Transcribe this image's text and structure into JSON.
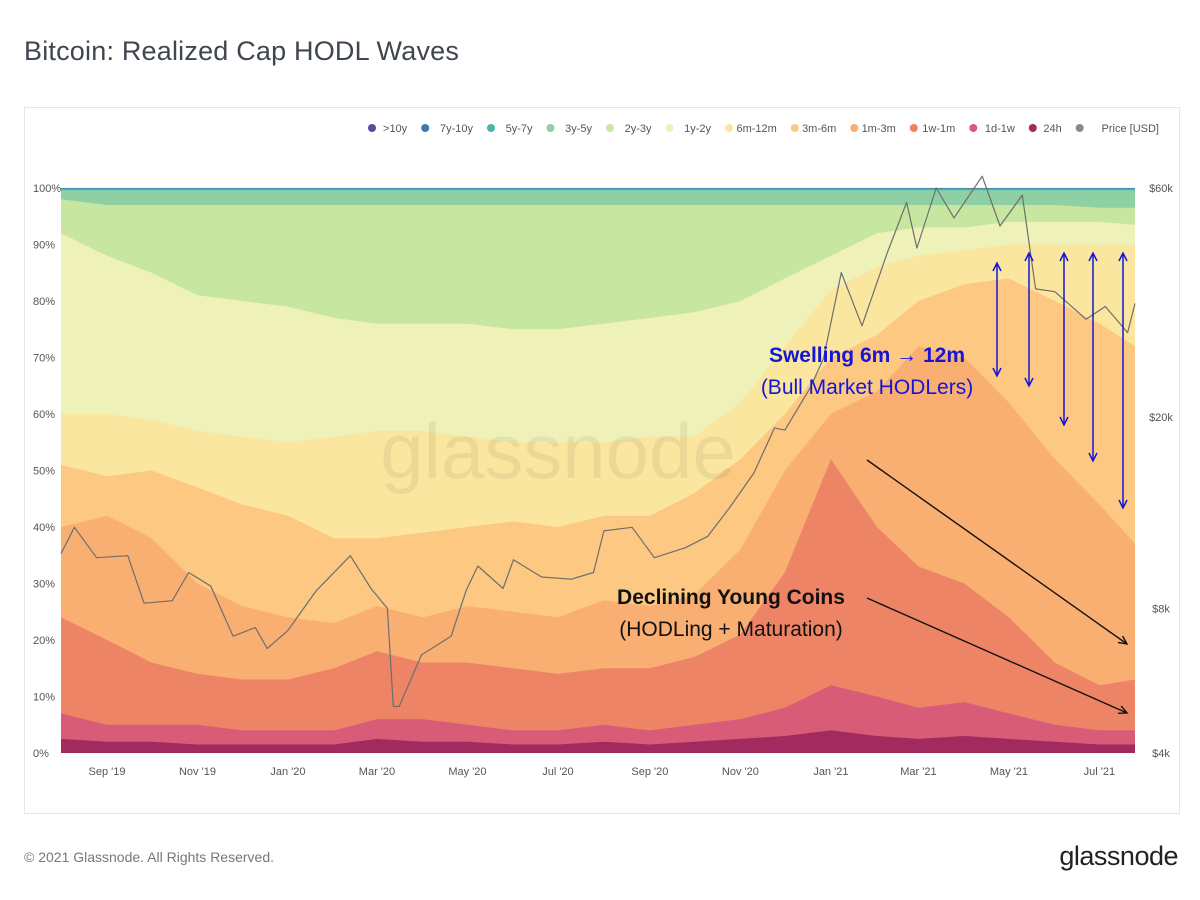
{
  "page": {
    "title": "Bitcoin: Realized Cap HODL Waves",
    "copyright": "© 2021 Glassnode. All Rights Reserved.",
    "brand": "glassnode",
    "watermark": "glassnode"
  },
  "chart_data": {
    "type": "area",
    "stacked": true,
    "title": "Bitcoin: Realized Cap HODL Waves",
    "legend_position": "top-right",
    "grid": true,
    "x_range": [
      "2019-08-01",
      "2021-07-25"
    ],
    "x_ticks": [
      "Sep '19",
      "Nov '19",
      "Jan '20",
      "Mar '20",
      "May '20",
      "Jul '20",
      "Sep '20",
      "Nov '20",
      "Jan '21",
      "Mar '21",
      "May '21",
      "Jul '21"
    ],
    "y_left": {
      "range": [
        0,
        100
      ],
      "unit": "%",
      "ticks": [
        "0%",
        "10%",
        "20%",
        "30%",
        "40%",
        "50%",
        "60%",
        "70%",
        "80%",
        "90%",
        "100%"
      ]
    },
    "y_right": {
      "scale": "log",
      "ticks": [
        {
          "label": "$4k",
          "value": 4000
        },
        {
          "label": "$8k",
          "value": 8000
        },
        {
          "label": "$20k",
          "value": 20000
        },
        {
          "label": "$60k",
          "value": 60000
        }
      ]
    },
    "legend": [
      {
        "name": ">10y",
        "color": "#5b4a9e"
      },
      {
        "name": "7y-10y",
        "color": "#3a78b5"
      },
      {
        "name": "5y-7y",
        "color": "#4cb5a8"
      },
      {
        "name": "3y-5y",
        "color": "#8ed0a3"
      },
      {
        "name": "2y-3y",
        "color": "#c7e6a0"
      },
      {
        "name": "1y-2y",
        "color": "#eef2b8"
      },
      {
        "name": "6m-12m",
        "color": "#fbe6a0"
      },
      {
        "name": "3m-6m",
        "color": "#fcc882"
      },
      {
        "name": "1m-3m",
        "color": "#f9ae72"
      },
      {
        "name": "1w-1m",
        "color": "#ee8466"
      },
      {
        "name": "1d-1w",
        "color": "#d85c78"
      },
      {
        "name": "24h",
        "color": "#a12a5e"
      },
      {
        "name": "Price [USD]",
        "color": "#8a8a8a"
      }
    ],
    "dates": [
      "2019-08-01",
      "2019-09-01",
      "2019-10-01",
      "2019-11-01",
      "2019-12-01",
      "2020-01-01",
      "2020-02-01",
      "2020-03-01",
      "2020-04-01",
      "2020-05-01",
      "2020-06-01",
      "2020-07-01",
      "2020-08-01",
      "2020-09-01",
      "2020-10-01",
      "2020-11-01",
      "2020-12-01",
      "2021-01-01",
      "2021-02-01",
      "2021-03-01",
      "2021-04-01",
      "2021-05-01",
      "2021-06-01",
      "2021-07-01",
      "2021-07-25"
    ],
    "bands_cumulative_top_pct": {
      "24h": [
        2.5,
        2,
        2,
        1.5,
        1.5,
        1.5,
        1.5,
        2.5,
        2,
        2,
        1.5,
        1.5,
        2,
        1.5,
        2,
        2.5,
        3,
        4,
        3,
        2.5,
        3,
        2.5,
        2,
        1.5,
        1.5
      ],
      "1d-1w": [
        7,
        5,
        5,
        5,
        4,
        4,
        4,
        6,
        6,
        5,
        4,
        4,
        5,
        4,
        5,
        6,
        8,
        12,
        10,
        8,
        9,
        7,
        5,
        4,
        4
      ],
      "1w-1m": [
        24,
        20,
        16,
        14,
        13,
        13,
        15,
        18,
        16,
        16,
        15,
        14,
        15,
        15,
        17,
        21,
        32,
        52,
        40,
        33,
        30,
        24,
        16,
        12,
        13
      ],
      "1m-3m": [
        40,
        42,
        38,
        30,
        26,
        24,
        23,
        26,
        24,
        26,
        25,
        24,
        27,
        26,
        28,
        36,
        50,
        60,
        64,
        72,
        70,
        62,
        52,
        44,
        37
      ],
      "3m-6m": [
        51,
        49,
        50,
        47,
        44,
        42,
        38,
        38,
        39,
        40,
        41,
        40,
        42,
        42,
        46,
        52,
        60,
        70,
        74,
        80,
        83,
        84,
        80,
        76,
        72
      ],
      "6m-12m": [
        60,
        60,
        59,
        57,
        56,
        55,
        56,
        57,
        57,
        56,
        55,
        55,
        55,
        56,
        56,
        62,
        72,
        82,
        86,
        88,
        89,
        90,
        90,
        90,
        90
      ],
      "1y-2y": [
        92,
        88,
        85,
        81,
        80,
        79,
        77,
        76,
        76,
        76,
        75,
        75,
        76,
        77,
        78,
        80,
        84,
        88,
        92,
        93,
        93,
        94,
        94,
        94,
        93.5
      ],
      "2y-3y": [
        98,
        97,
        97,
        97,
        97,
        97,
        97,
        97,
        97,
        97,
        97,
        97,
        97,
        97,
        97,
        97,
        97,
        97,
        97,
        97,
        97,
        97,
        97,
        96.5,
        96.5
      ],
      "3y-5y": [
        99.6,
        99.6,
        99.6,
        99.6,
        99.6,
        99.6,
        99.6,
        99.6,
        99.6,
        99.6,
        99.6,
        99.6,
        99.6,
        99.6,
        99.6,
        99.6,
        99.6,
        99.6,
        99.6,
        99.6,
        99.6,
        99.6,
        99.6,
        99.6,
        99.6
      ],
      "5y-7y": [
        99.9,
        99.9,
        99.9,
        99.9,
        99.9,
        99.9,
        99.9,
        99.9,
        99.9,
        99.9,
        99.9,
        99.9,
        99.9,
        99.9,
        99.9,
        99.9,
        99.9,
        99.9,
        99.9,
        99.9,
        99.9,
        99.9,
        99.9,
        99.9,
        99.9
      ],
      "7y-10y": [
        100,
        100,
        100,
        100,
        100,
        100,
        100,
        100,
        100,
        100,
        100,
        100,
        100,
        100,
        100,
        100,
        100,
        100,
        100,
        100,
        100,
        100,
        100,
        100,
        100
      ],
      ">10y": [
        100,
        100,
        100,
        100,
        100,
        100,
        100,
        100,
        100,
        100,
        100,
        100,
        100,
        100,
        100,
        100,
        100,
        100,
        100,
        100,
        100,
        100,
        100,
        100,
        100
      ]
    },
    "price_usd": [
      [
        "2019-08-01",
        10400
      ],
      [
        "2019-08-10",
        11800
      ],
      [
        "2019-08-25",
        10200
      ],
      [
        "2019-09-15",
        10300
      ],
      [
        "2019-09-26",
        8200
      ],
      [
        "2019-10-15",
        8300
      ],
      [
        "2019-10-26",
        9500
      ],
      [
        "2019-11-10",
        8900
      ],
      [
        "2019-11-25",
        7000
      ],
      [
        "2019-12-10",
        7300
      ],
      [
        "2019-12-18",
        6600
      ],
      [
        "2020-01-01",
        7200
      ],
      [
        "2020-01-20",
        8700
      ],
      [
        "2020-02-12",
        10300
      ],
      [
        "2020-02-26",
        8800
      ],
      [
        "2020-03-08",
        8000
      ],
      [
        "2020-03-12",
        5000
      ],
      [
        "2020-03-16",
        5000
      ],
      [
        "2020-03-31",
        6400
      ],
      [
        "2020-04-20",
        7000
      ],
      [
        "2020-04-30",
        8700
      ],
      [
        "2020-05-08",
        9800
      ],
      [
        "2020-05-25",
        8800
      ],
      [
        "2020-06-01",
        10100
      ],
      [
        "2020-06-20",
        9300
      ],
      [
        "2020-07-10",
        9200
      ],
      [
        "2020-07-25",
        9500
      ],
      [
        "2020-08-01",
        11600
      ],
      [
        "2020-08-20",
        11800
      ],
      [
        "2020-09-04",
        10200
      ],
      [
        "2020-09-25",
        10700
      ],
      [
        "2020-10-10",
        11300
      ],
      [
        "2020-10-25",
        13000
      ],
      [
        "2020-11-10",
        15300
      ],
      [
        "2020-11-24",
        19000
      ],
      [
        "2020-12-01",
        18800
      ],
      [
        "2020-12-18",
        23000
      ],
      [
        "2020-12-27",
        26500
      ],
      [
        "2021-01-08",
        40000
      ],
      [
        "2021-01-22",
        31000
      ],
      [
        "2021-02-08",
        44000
      ],
      [
        "2021-02-21",
        56000
      ],
      [
        "2021-02-28",
        45000
      ],
      [
        "2021-03-13",
        60000
      ],
      [
        "2021-03-25",
        52000
      ],
      [
        "2021-04-13",
        63500
      ],
      [
        "2021-04-25",
        50000
      ],
      [
        "2021-05-10",
        58000
      ],
      [
        "2021-05-19",
        37000
      ],
      [
        "2021-06-01",
        36500
      ],
      [
        "2021-06-22",
        32000
      ],
      [
        "2021-07-05",
        34000
      ],
      [
        "2021-07-20",
        30000
      ],
      [
        "2021-07-25",
        34500
      ]
    ],
    "annotations": [
      {
        "title": "Swelling 6m → 12m",
        "subtitle": "(Bull Market HODLers)",
        "color": "#1515d6"
      },
      {
        "title": "Declining Young Coins",
        "subtitle": "(HODLing + Maturation)",
        "color": "#111111"
      }
    ]
  }
}
